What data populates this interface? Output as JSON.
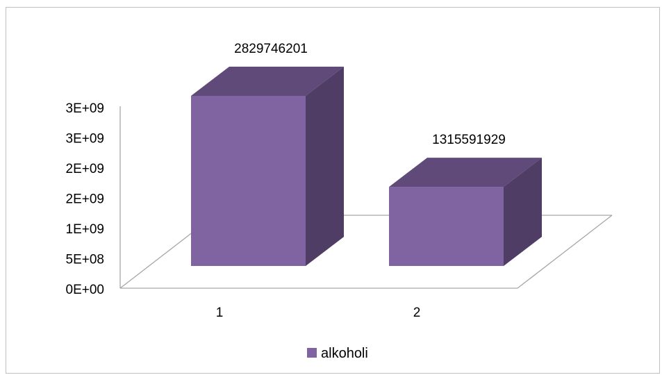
{
  "chart_data": {
    "type": "bar",
    "categories": [
      "1",
      "2"
    ],
    "series": [
      {
        "name": "alkoholi",
        "values": [
          2829746201,
          1315591929
        ]
      }
    ],
    "data_labels": [
      "2829746201",
      "1315591929"
    ],
    "y_tick_labels": [
      "0E+00",
      "5E+08",
      "1E+09",
      "2E+09",
      "2E+09",
      "3E+09",
      "3E+09"
    ],
    "ylim": [
      0,
      3000000000
    ],
    "grid": false,
    "legend": "bottom",
    "colors": {
      "bar_front": "#8064a2",
      "bar_top": "#5f4a7a",
      "bar_side": "#4f3d66",
      "axis": "#a6a6a6"
    }
  }
}
